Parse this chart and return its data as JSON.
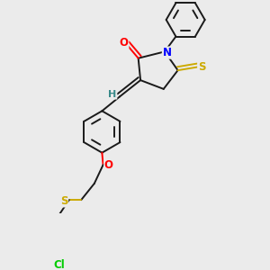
{
  "bg_color": "#ebebeb",
  "bond_color": "#1a1a1a",
  "bond_width": 1.4,
  "dbo": 0.018,
  "atom_colors": {
    "O": "#ff0000",
    "N": "#0000ff",
    "S": "#ccaa00",
    "Cl": "#00cc00",
    "H": "#3a8a8a",
    "C": "#1a1a1a"
  },
  "fs": 8.5
}
